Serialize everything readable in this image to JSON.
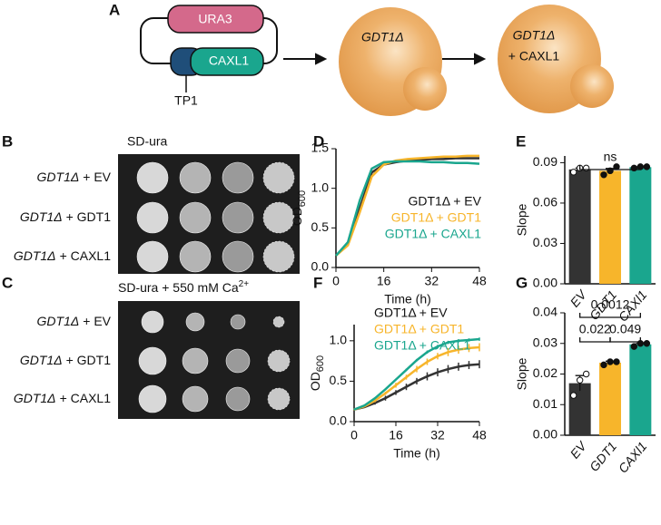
{
  "panel_a": {
    "label": "A",
    "plasmid_marker": "URA3",
    "plasmid_gene": "CAXL1",
    "promoter": "TP1",
    "cell_1": "GDT1Δ",
    "cell_2": "GDT1Δ",
    "cell_2_addition": "+ CAXL1"
  },
  "panel_b": {
    "label": "B",
    "title": "SD-ura",
    "rows": [
      {
        "strain": "GDT1Δ",
        "addition": "+ EV"
      },
      {
        "strain": "GDT1Δ",
        "addition": "+ GDT1"
      },
      {
        "strain": "GDT1Δ",
        "addition": "+ CAXL1"
      }
    ]
  },
  "panel_c": {
    "label": "C",
    "title": "SD-ura + 550 mM Ca",
    "title_sup": "2+",
    "rows": [
      {
        "strain": "GDT1Δ",
        "addition": "+ EV"
      },
      {
        "strain": "GDT1Δ",
        "addition": "+ GDT1"
      },
      {
        "strain": "GDT1Δ",
        "addition": "+ CAXL1"
      }
    ]
  },
  "chart_data": [
    {
      "type": "line",
      "panel": "D",
      "xlabel": "Time (h)",
      "ylabel": "OD",
      "ylabel_sub": "600",
      "legend": "lower right",
      "x": [
        0,
        4,
        8,
        12,
        16,
        20,
        24,
        28,
        32,
        36,
        40,
        44,
        48
      ],
      "xlim": [
        0,
        48
      ],
      "xticks": [
        0,
        16,
        32,
        48
      ],
      "ylim": [
        0,
        1.5
      ],
      "yticks": [
        {
          "value": 0,
          "label": "0.0"
        },
        {
          "value": 0.5,
          "label": "0.5"
        },
        {
          "value": 1,
          "label": "1.0"
        },
        {
          "value": 1.5,
          "label": "1.5"
        }
      ],
      "series": [
        {
          "name": "GDT1Δ + EV",
          "color": "#333333",
          "values": [
            0.15,
            0.3,
            0.75,
            1.2,
            1.3,
            1.33,
            1.35,
            1.36,
            1.37,
            1.37,
            1.38,
            1.38,
            1.38
          ]
        },
        {
          "name": "GDT1Δ + GDT1",
          "color": "#f7b52b",
          "values": [
            0.15,
            0.28,
            0.7,
            1.15,
            1.3,
            1.35,
            1.37,
            1.38,
            1.39,
            1.4,
            1.4,
            1.41,
            1.41
          ]
        },
        {
          "name": "GDT1Δ + CAXL1",
          "color": "#1aa68e",
          "values": [
            0.15,
            0.32,
            0.85,
            1.25,
            1.33,
            1.34,
            1.34,
            1.34,
            1.33,
            1.33,
            1.32,
            1.32,
            1.31
          ]
        }
      ]
    },
    {
      "type": "bar",
      "panel": "E",
      "ylabel": "Slope",
      "categories": [
        "EV",
        "GDT1",
        "CAXl1"
      ],
      "colors": [
        "#333333",
        "#f7b52b",
        "#1aa68e"
      ],
      "values": [
        0.085,
        0.084,
        0.0867
      ],
      "errors": [
        0.001,
        0.0017,
        0.0003
      ],
      "points": [
        [
          0.083,
          0.086,
          0.086
        ],
        [
          0.081,
          0.084,
          0.087
        ],
        [
          0.086,
          0.087,
          0.087
        ]
      ],
      "ylim": [
        0,
        0.095
      ],
      "yticks": [
        {
          "value": 0,
          "label": "0.00"
        },
        {
          "value": 0.03,
          "label": "0.03"
        },
        {
          "value": 0.06,
          "label": "0.06"
        },
        {
          "value": 0.09,
          "label": "0.09"
        }
      ],
      "annotations": [
        {
          "text": "ns",
          "between": [
            "EV",
            "CAXl1"
          ]
        }
      ]
    },
    {
      "type": "line",
      "panel": "F",
      "xlabel": "Time (h)",
      "ylabel": "OD",
      "ylabel_sub": "600",
      "legend": "upper left",
      "x": [
        0,
        4,
        8,
        12,
        16,
        20,
        24,
        28,
        32,
        36,
        40,
        44,
        48
      ],
      "xlim": [
        0,
        48
      ],
      "xticks": [
        0,
        16,
        32,
        48
      ],
      "ylim": [
        0,
        1.2
      ],
      "yticks": [
        {
          "value": 0,
          "label": "0.0"
        },
        {
          "value": 0.5,
          "label": "0.5"
        },
        {
          "value": 1,
          "label": "1.0"
        }
      ],
      "series": [
        {
          "name": "GDT1Δ + EV",
          "color": "#333333",
          "values": [
            0.15,
            0.18,
            0.23,
            0.29,
            0.36,
            0.43,
            0.5,
            0.56,
            0.61,
            0.65,
            0.68,
            0.7,
            0.71
          ],
          "errors": [
            0.01,
            0.01,
            0.02,
            0.03,
            0.03,
            0.04,
            0.04,
            0.05,
            0.05,
            0.05,
            0.05,
            0.05,
            0.05
          ]
        },
        {
          "name": "GDT1Δ + GDT1",
          "color": "#f7b52b",
          "values": [
            0.15,
            0.19,
            0.26,
            0.35,
            0.45,
            0.55,
            0.65,
            0.74,
            0.81,
            0.86,
            0.89,
            0.91,
            0.92
          ],
          "errors": [
            0.01,
            0.01,
            0.02,
            0.02,
            0.03,
            0.03,
            0.04,
            0.04,
            0.04,
            0.05,
            0.05,
            0.05,
            0.05
          ]
        },
        {
          "name": "GDT1Δ + CAXL1",
          "color": "#1aa68e",
          "values": [
            0.15,
            0.2,
            0.29,
            0.4,
            0.52,
            0.64,
            0.76,
            0.86,
            0.93,
            0.98,
            1,
            1.01,
            1.02
          ],
          "errors": [
            0.005,
            0.005,
            0.01,
            0.01,
            0.01,
            0.015,
            0.015,
            0.02,
            0.02,
            0.02,
            0.02,
            0.02,
            0.02
          ]
        }
      ]
    },
    {
      "type": "bar",
      "panel": "G",
      "ylabel": "Slope",
      "categories": [
        "EV",
        "GDT1",
        "CAXl1"
      ],
      "colors": [
        "#333333",
        "#f7b52b",
        "#1aa68e"
      ],
      "values": [
        0.017,
        0.0237,
        0.0297
      ],
      "errors": [
        0.0025,
        0.0005,
        0.0003
      ],
      "points": [
        [
          0.013,
          0.018,
          0.02
        ],
        [
          0.023,
          0.024,
          0.024
        ],
        [
          0.029,
          0.03,
          0.03
        ]
      ],
      "ylim": [
        0,
        0.04
      ],
      "yticks": [
        {
          "value": 0,
          "label": "0.00"
        },
        {
          "value": 0.01,
          "label": "0.01"
        },
        {
          "value": 0.02,
          "label": "0.02"
        },
        {
          "value": 0.03,
          "label": "0.03"
        },
        {
          "value": 0.04,
          "label": "0.04"
        }
      ],
      "annotations": [
        {
          "text": "0.022",
          "between": [
            "EV",
            "GDT1"
          ]
        },
        {
          "text": "0.049",
          "between": [
            "GDT1",
            "CAXl1"
          ]
        },
        {
          "text": "0.0012",
          "between": [
            "EV",
            "CAXl1"
          ]
        }
      ]
    }
  ]
}
